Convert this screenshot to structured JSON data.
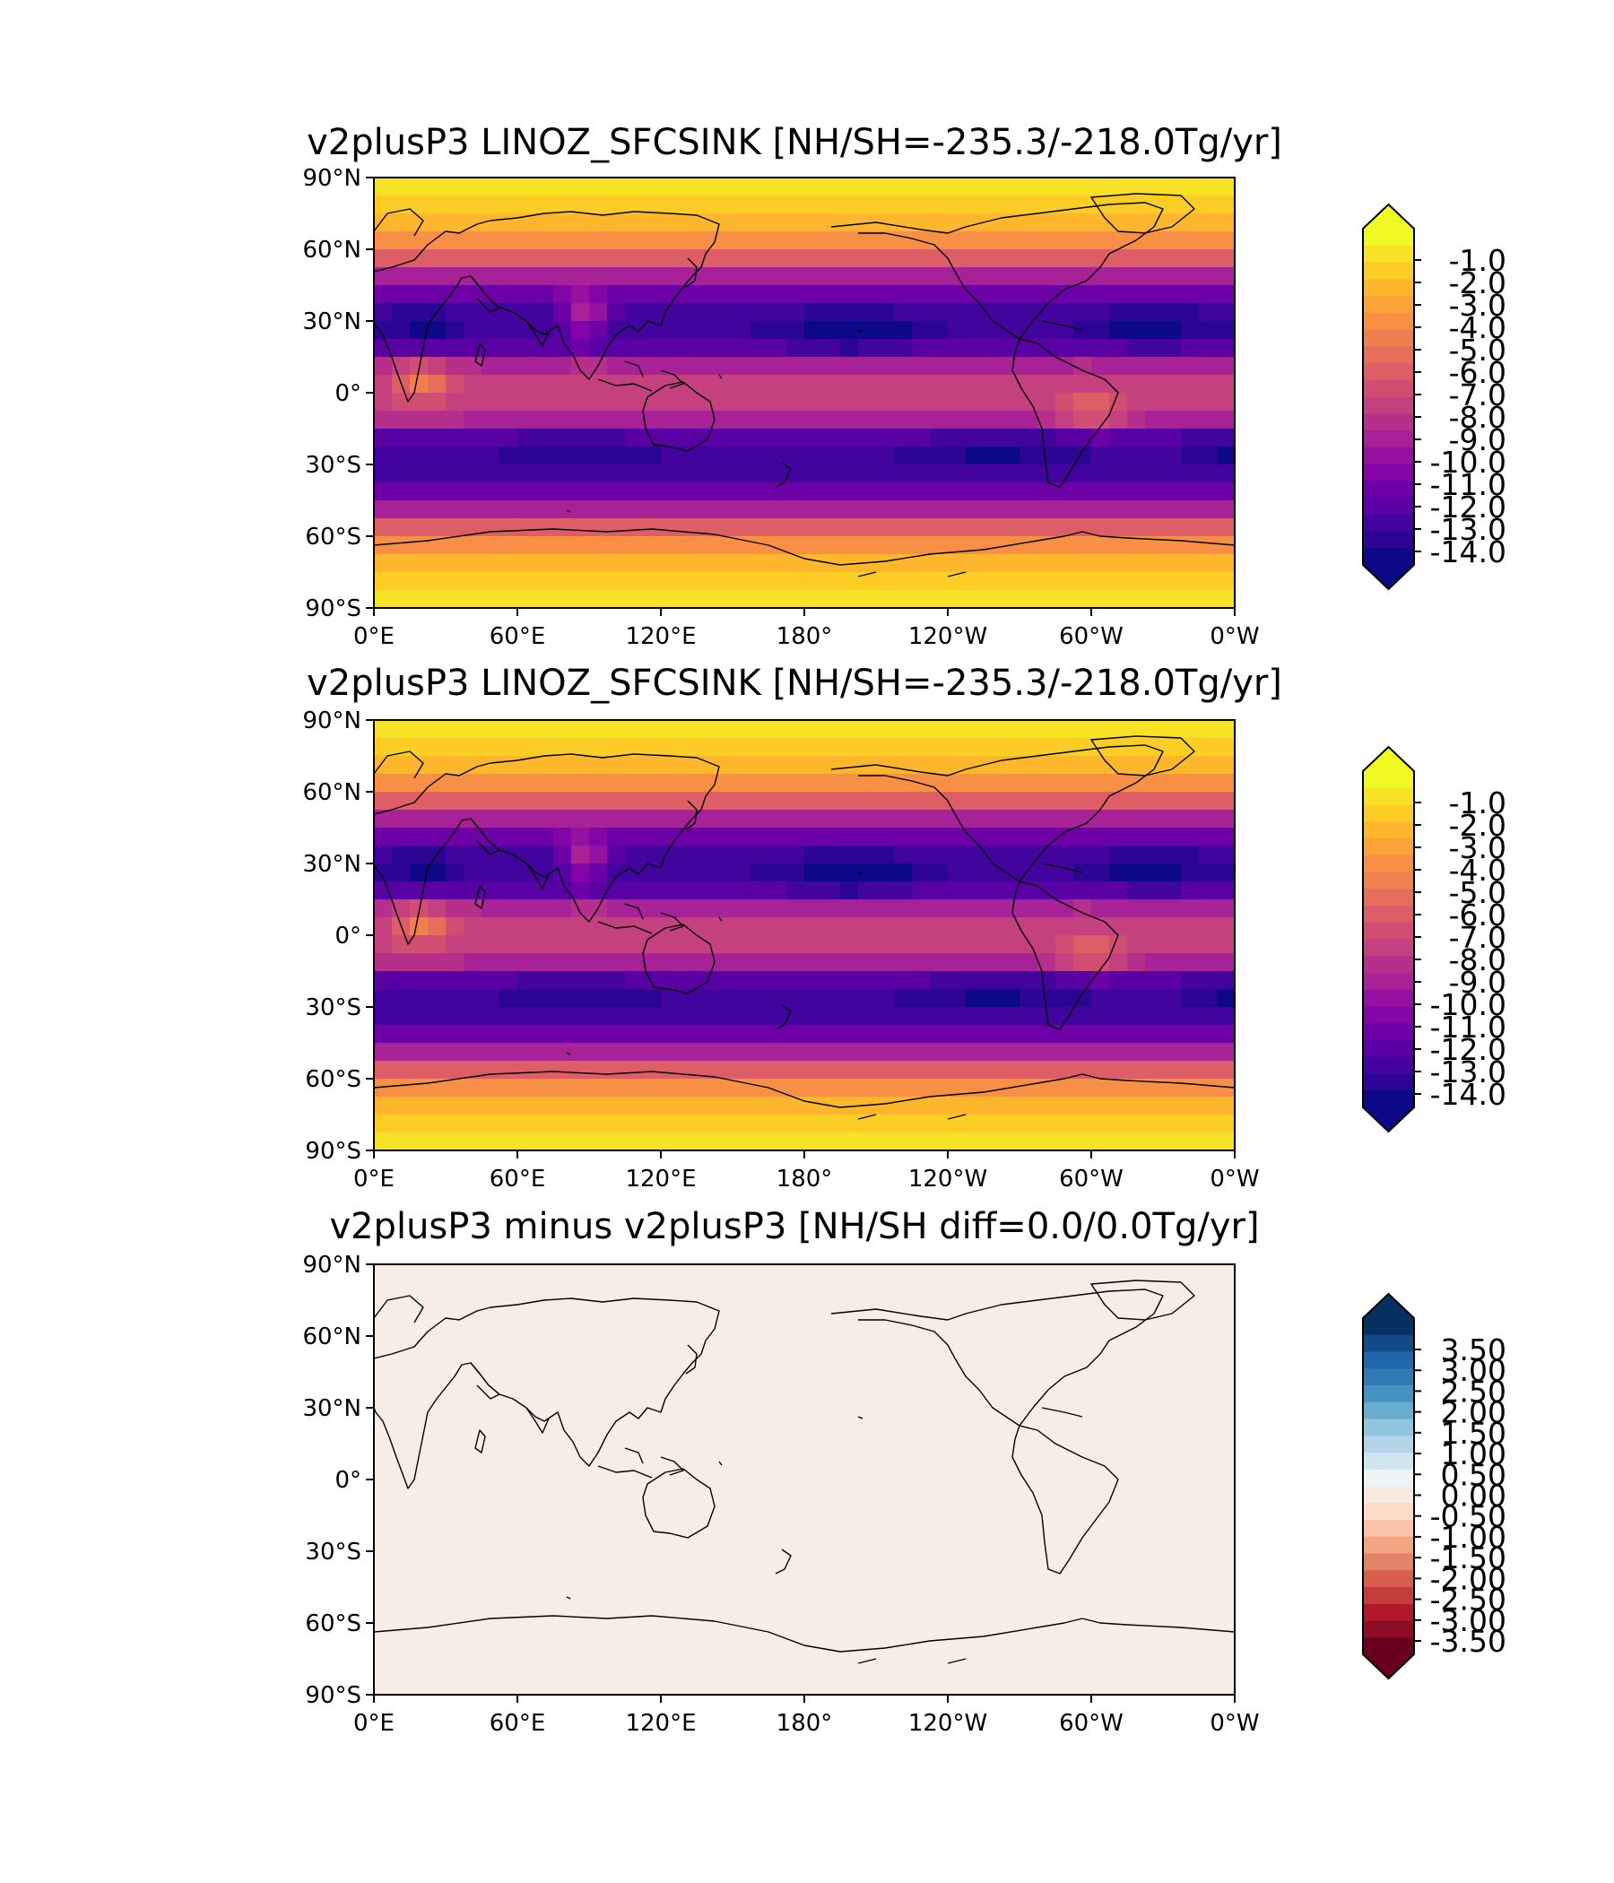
{
  "panels": [
    {
      "title": "v2plusP3 LINOZ_SFCSINK [NH/SH=-235.3/-218.0Tg/yr]",
      "field": "linoz_sfcsink",
      "colormap": "plasma",
      "colorbar_ticks": [
        "-1.0",
        "-2.0",
        "-3.0",
        "-4.0",
        "-5.0",
        "-6.0",
        "-7.0",
        "-8.0",
        "-9.0",
        "-10.0",
        "-11.0",
        "-12.0",
        "-13.0",
        "-14.0"
      ],
      "colorbar_extend": "both"
    },
    {
      "title": "v2plusP3 LINOZ_SFCSINK [NH/SH=-235.3/-218.0Tg/yr]",
      "field": "linoz_sfcsink",
      "colormap": "plasma",
      "colorbar_ticks": [
        "-1.0",
        "-2.0",
        "-3.0",
        "-4.0",
        "-5.0",
        "-6.0",
        "-7.0",
        "-8.0",
        "-9.0",
        "-10.0",
        "-11.0",
        "-12.0",
        "-13.0",
        "-14.0"
      ],
      "colorbar_extend": "both"
    },
    {
      "title": "v2plusP3 minus v2plusP3 [NH/SH diff=0.0/0.0Tg/yr]",
      "field": "difference",
      "colormap": "RdBu",
      "uniform_fill": "#f7ece6",
      "colorbar_ticks": [
        "3.50",
        "3.00",
        "2.50",
        "2.00",
        "1.50",
        "1.00",
        "0.50",
        "0.00",
        "-0.50",
        "-1.00",
        "-1.50",
        "-2.00",
        "-2.50",
        "-3.00",
        "-3.50"
      ],
      "colorbar_extend": "both"
    }
  ],
  "lat_ticks": [
    "90°N",
    "60°N",
    "30°N",
    "0°",
    "30°S",
    "60°S",
    "90°S"
  ],
  "lon_ticks": [
    "0°E",
    "60°E",
    "120°E",
    "180°",
    "120°W",
    "60°W",
    "0°W"
  ],
  "colors": {
    "plasma": [
      "#0d0887",
      "#2c0594",
      "#43039e",
      "#5901a5",
      "#6e00a8",
      "#8305a7",
      "#9511a1",
      "#a72197",
      "#b6308b",
      "#c5407e",
      "#d14e72",
      "#dd5e66",
      "#e76e5b",
      "#f07f4f",
      "#f79044",
      "#fca338",
      "#feb72d",
      "#fccd25",
      "#f7e225",
      "#f0f921"
    ],
    "rdbu": [
      "#67001f",
      "#8e0c25",
      "#b2182b",
      "#c43c3c",
      "#d6604d",
      "#e58368",
      "#f4a582",
      "#f9c4a9",
      "#fddbc7",
      "#f8e9e1",
      "#eef3f6",
      "#d1e5f0",
      "#b3d5e7",
      "#92c5de",
      "#6aacd0",
      "#4393c3",
      "#2f79b5",
      "#2166ac",
      "#134b87",
      "#053061"
    ],
    "land_outline": "#000000"
  }
}
